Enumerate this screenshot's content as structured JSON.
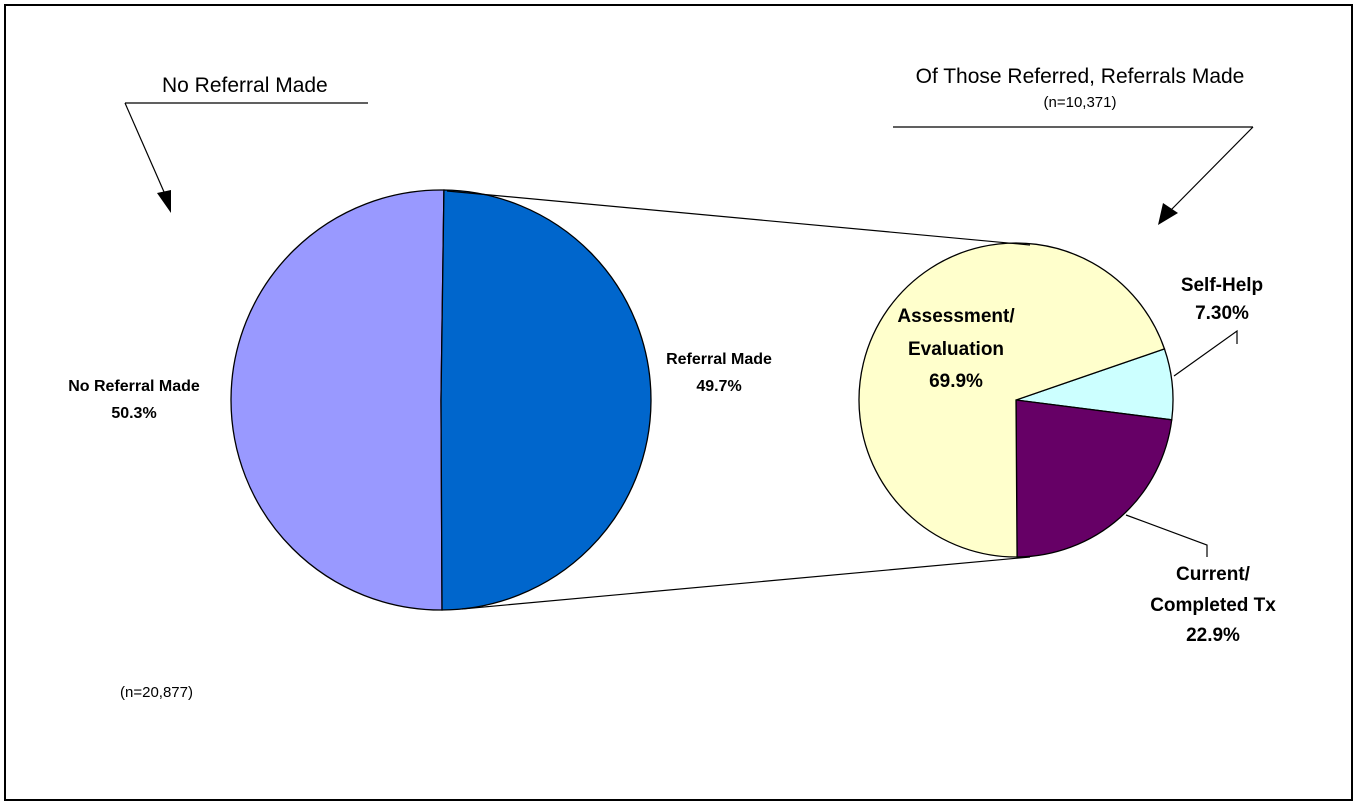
{
  "annotations": {
    "left_callout": "No Referral Made",
    "right_callout": "Of Those Referred, Referrals Made",
    "right_n": "(n=10,371)",
    "left_n": "(n=20,877)"
  },
  "chart_data": [
    {
      "type": "pie",
      "title": "",
      "slices": [
        {
          "label": "No Referral Made",
          "value": 50.3,
          "value_label": "50.3%",
          "color": "#9999ff"
        },
        {
          "label": "Referral Made",
          "value": 49.7,
          "value_label": "49.7%",
          "color": "#0066cc"
        }
      ]
    },
    {
      "type": "pie",
      "title": "Of Those Referred, Referrals Made",
      "slices": [
        {
          "label": "Self-Help",
          "value": 7.3,
          "value_label": "7.30%",
          "color": "#ccffff"
        },
        {
          "label": "Current/ Completed Tx",
          "value": 22.9,
          "value_label": "22.9%",
          "color": "#660066"
        },
        {
          "label": "Assessment/ Evaluation",
          "value": 69.9,
          "value_label": "69.9%",
          "color": "#ffffcc"
        }
      ]
    }
  ]
}
